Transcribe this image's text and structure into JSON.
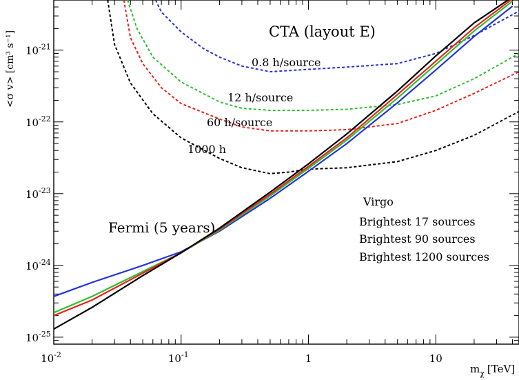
{
  "chart_data": {
    "type": "line",
    "title": "",
    "xlabel_main": "m",
    "xlabel_sub": "χ",
    "xlabel_unit": "[TeV]",
    "ylabel": "<σ v> [cm³ s⁻¹]",
    "xscale": "log",
    "yscale": "log",
    "xlim": [
      0.01,
      45
    ],
    "ylim": [
      8e-26,
      5e-21
    ],
    "x_ticks": [
      {
        "value": 0.01,
        "base": "10",
        "exp": "-2"
      },
      {
        "value": 0.1,
        "base": "10",
        "exp": "-1"
      },
      {
        "value": 1,
        "base": "1",
        "exp": ""
      },
      {
        "value": 10,
        "base": "10",
        "exp": ""
      }
    ],
    "y_ticks": [
      {
        "value": 1e-25,
        "base": "10",
        "exp": "-25"
      },
      {
        "value": 1e-24,
        "base": "10",
        "exp": "-24"
      },
      {
        "value": 1e-23,
        "base": "10",
        "exp": "-23"
      },
      {
        "value": 1e-22,
        "base": "10",
        "exp": "-22"
      },
      {
        "value": 1e-21,
        "base": "10",
        "exp": "-21"
      }
    ],
    "grid": false,
    "legend_placement": "center-right",
    "series": [
      {
        "name": "Virgo",
        "color": "#000000",
        "style": "solid",
        "x": [
          0.01,
          0.02,
          0.05,
          0.1,
          0.2,
          0.5,
          1,
          2,
          5,
          10,
          20,
          40
        ],
        "y": [
          1.3e-25,
          2.6e-25,
          7.2e-25,
          1.5e-24,
          3.3e-24,
          1.05e-23,
          2.6e-23,
          6.8e-23,
          2.7e-22,
          8.3e-22,
          2.4e-21,
          5.5e-21
        ]
      },
      {
        "name": "Brightest 17 sources",
        "color": "#e8241e",
        "style": "solid",
        "x": [
          0.01,
          0.02,
          0.05,
          0.1,
          0.2,
          0.5,
          1,
          2,
          5,
          10,
          20,
          40
        ],
        "y": [
          2e-25,
          3.3e-25,
          7.8e-25,
          1.5e-24,
          3.2e-24,
          9.8e-24,
          2.4e-23,
          6e-23,
          2.4e-22,
          7e-22,
          2.05e-21,
          5.2e-21
        ]
      },
      {
        "name": "Brightest 90 sources",
        "color": "#2fbf2f",
        "style": "solid",
        "x": [
          0.01,
          0.02,
          0.05,
          0.1,
          0.2,
          0.5,
          1,
          2,
          5,
          10,
          20,
          40
        ],
        "y": [
          2.2e-25,
          3.7e-25,
          8.2e-25,
          1.5e-24,
          3.1e-24,
          9.3e-24,
          2.25e-23,
          5.6e-23,
          2.15e-22,
          6.3e-22,
          1.85e-21,
          4.8e-21
        ]
      },
      {
        "name": "Brightest 1200 sources",
        "color": "#2233dd",
        "style": "solid",
        "x": [
          0.01,
          0.02,
          0.05,
          0.1,
          0.2,
          0.5,
          1,
          2,
          5,
          10,
          20,
          40
        ],
        "y": [
          3.7e-25,
          5.8e-25,
          1e-24,
          1.55e-24,
          3e-24,
          8.6e-24,
          2.05e-23,
          5e-23,
          1.85e-22,
          5.3e-22,
          1.55e-21,
          4.1e-21
        ]
      },
      {
        "name": "1000 h",
        "color": "#000000",
        "style": "dashed",
        "x": [
          0.0265,
          0.03,
          0.04,
          0.06,
          0.1,
          0.2,
          0.3,
          0.5,
          0.7,
          1,
          2,
          5,
          10,
          20,
          45
        ],
        "y": [
          5e-21,
          1.2e-21,
          3.5e-22,
          1.3e-22,
          6e-23,
          3.1e-23,
          2.3e-23,
          1.9e-23,
          2e-23,
          2.2e-23,
          2.3e-23,
          2.8e-23,
          4e-23,
          6.5e-23,
          1.4e-22
        ]
      },
      {
        "name": "60 h/source",
        "color": "#e8241e",
        "style": "dashed",
        "x": [
          0.0355,
          0.04,
          0.05,
          0.07,
          0.1,
          0.2,
          0.3,
          0.5,
          1,
          2,
          5,
          10,
          20,
          45
        ],
        "y": [
          5e-21,
          1.5e-21,
          6.5e-22,
          3e-22,
          1.8e-22,
          1.1e-22,
          8.5e-23,
          7.5e-23,
          7.5e-23,
          7.8e-23,
          9.5e-23,
          1.45e-22,
          2.5e-22,
          5e-22
        ]
      },
      {
        "name": "12 h/source",
        "color": "#2fbf2f",
        "style": "dashed",
        "x": [
          0.038,
          0.045,
          0.06,
          0.1,
          0.2,
          0.3,
          0.5,
          1,
          2,
          5,
          10,
          20,
          45
        ],
        "y": [
          5e-21,
          2e-21,
          8e-22,
          3.6e-22,
          1.9e-22,
          1.55e-22,
          1.45e-22,
          1.45e-22,
          1.5e-22,
          1.75e-22,
          2.3e-22,
          4e-22,
          9e-22
        ]
      },
      {
        "name": "0.8 h/source",
        "color": "#2233dd",
        "style": "dashed",
        "x": [
          0.063,
          0.07,
          0.1,
          0.15,
          0.2,
          0.3,
          0.5,
          1,
          2,
          5,
          10,
          20,
          45
        ],
        "y": [
          5e-21,
          3.4e-21,
          1.8e-21,
          1.05e-21,
          8e-22,
          6e-22,
          5e-22,
          5.4e-22,
          5.8e-22,
          6.5e-22,
          9e-22,
          1.6e-21,
          3.5e-21
        ]
      }
    ],
    "annotations": [
      {
        "text": "CTA (layout E)",
        "color": "#000000"
      },
      {
        "text": "0.8 h/source",
        "color": "#2233dd"
      },
      {
        "text": "12 h/source",
        "color": "#2fbf2f"
      },
      {
        "text": "60 h/source",
        "color": "#e8241e"
      },
      {
        "text": "1000 h",
        "color": "#000000"
      },
      {
        "text": "Fermi (5 years)",
        "color": "#000000"
      }
    ],
    "legend": [
      {
        "text": "Virgo",
        "color": "#000000"
      },
      {
        "text": "Brightest 17 sources",
        "color": "#e8241e"
      },
      {
        "text": "Brightest 90 sources",
        "color": "#2fbf2f"
      },
      {
        "text": "Brightest 1200 sources",
        "color": "#2233dd"
      }
    ]
  }
}
